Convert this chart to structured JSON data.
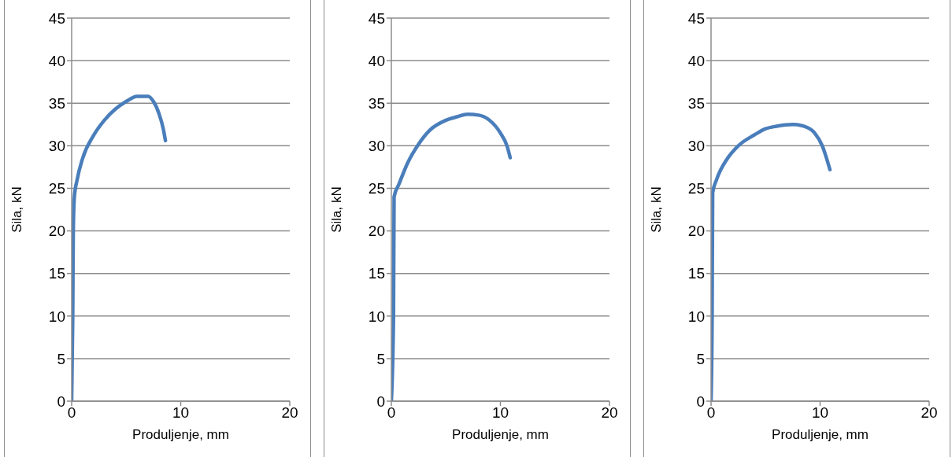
{
  "chart_data": [
    {
      "type": "line",
      "xlabel": "Produljenje, mm",
      "ylabel": "Sila, kN",
      "xlim": [
        0,
        20
      ],
      "xticks": [
        0,
        10,
        20
      ],
      "ylim": [
        0,
        45
      ],
      "yticks": [
        0,
        5,
        10,
        15,
        20,
        25,
        30,
        35,
        40,
        45
      ],
      "grid": "y",
      "marker": "none",
      "line_style": "solid",
      "series": [
        {
          "color": "#4a7ebb",
          "x": [
            0,
            0.1,
            0.15,
            0.25,
            0.5,
            1,
            2,
            3,
            4,
            5,
            6,
            7,
            7.5,
            8,
            8.4,
            8.6
          ],
          "values": [
            0,
            10,
            20,
            24,
            26,
            28.5,
            31.2,
            33,
            34.3,
            35.2,
            35.8,
            35.8,
            35.2,
            33.8,
            32,
            30.6
          ]
        }
      ]
    },
    {
      "type": "line",
      "xlabel": "Produljenje, mm",
      "ylabel": "Sila, kN",
      "xlim": [
        0,
        20
      ],
      "xticks": [
        0,
        10,
        20
      ],
      "ylim": [
        0,
        45
      ],
      "yticks": [
        0,
        5,
        10,
        15,
        20,
        25,
        30,
        35,
        40,
        45
      ],
      "grid": "y",
      "marker": "none",
      "line_style": "solid",
      "series": [
        {
          "color": "#4a7ebb",
          "x": [
            0,
            0.2,
            0.25,
            0.7,
            1.5,
            2.5,
            3.5,
            5,
            6,
            7,
            8,
            9,
            10,
            10.6,
            10.9
          ],
          "values": [
            0,
            10,
            24,
            25.5,
            28,
            30.2,
            31.8,
            33,
            33.4,
            33.7,
            33.6,
            33,
            31.5,
            30,
            28.6
          ]
        }
      ]
    },
    {
      "type": "line",
      "xlabel": "Produljenje, mm",
      "ylabel": "Sila, kN",
      "xlim": [
        0,
        20
      ],
      "xticks": [
        0,
        10,
        20
      ],
      "ylim": [
        0,
        45
      ],
      "yticks": [
        0,
        5,
        10,
        15,
        20,
        25,
        30,
        35,
        40,
        45
      ],
      "grid": "y",
      "marker": "none",
      "line_style": "solid",
      "series": [
        {
          "color": "#4a7ebb",
          "x": [
            0,
            0.1,
            0.15,
            0.5,
            1.5,
            2.5,
            4,
            5,
            6,
            7.5,
            8.5,
            9.5,
            10.2,
            10.6,
            10.9
          ],
          "values": [
            0,
            10,
            24.5,
            26,
            28.5,
            30,
            31.3,
            32,
            32.3,
            32.5,
            32.3,
            31.5,
            30,
            28.5,
            27.2
          ]
        }
      ]
    }
  ]
}
